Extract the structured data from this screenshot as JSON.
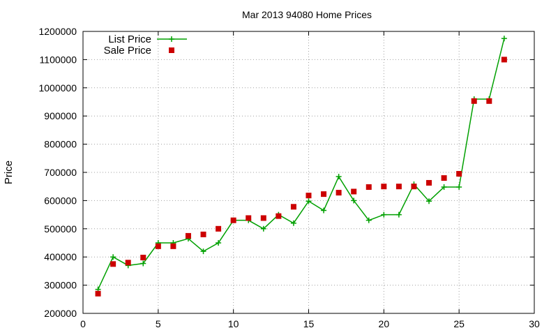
{
  "chart_data": {
    "type": "line",
    "title": "Mar 2013 94080 Home Prices",
    "xlabel": "",
    "ylabel": "Price",
    "xlim": [
      0,
      30
    ],
    "ylim": [
      200000,
      1200000
    ],
    "xticks": [
      0,
      5,
      10,
      15,
      20,
      25,
      30
    ],
    "yticks": [
      200000,
      300000,
      400000,
      500000,
      600000,
      700000,
      800000,
      900000,
      1000000,
      1100000,
      1200000
    ],
    "grid": true,
    "legend_position": "top-left",
    "x": [
      1,
      2,
      3,
      4,
      5,
      6,
      7,
      8,
      9,
      10,
      11,
      12,
      13,
      14,
      15,
      16,
      17,
      18,
      19,
      20,
      21,
      22,
      23,
      24,
      25,
      26,
      27,
      28
    ],
    "series": [
      {
        "name": "List Price",
        "style": "line-plus",
        "color": "#00a000",
        "values": [
          285000,
          400000,
          370000,
          377000,
          450000,
          450000,
          465000,
          420000,
          450000,
          530000,
          530000,
          500000,
          550000,
          520000,
          598000,
          565000,
          685000,
          600000,
          530000,
          550000,
          550000,
          658000,
          598000,
          648000,
          648000,
          960000,
          960000,
          1175000
        ]
      },
      {
        "name": "Sale Price",
        "style": "square-points",
        "color": "#cc0000",
        "values": [
          270000,
          375000,
          380000,
          398000,
          438000,
          438000,
          475000,
          480000,
          500000,
          530000,
          538000,
          538000,
          545000,
          578000,
          618000,
          623000,
          628000,
          632000,
          648000,
          650000,
          650000,
          650000,
          663000,
          680000,
          695000,
          953000,
          953000,
          1100000
        ]
      }
    ]
  }
}
